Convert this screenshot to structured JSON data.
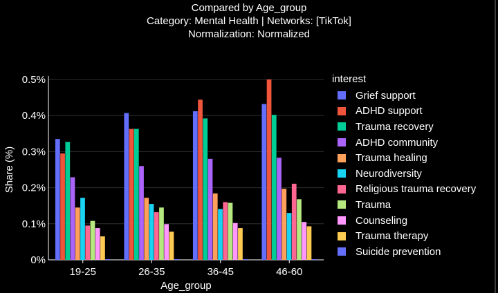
{
  "title": {
    "line1": "Compared by Age_group",
    "line2": "Category: Mental Health | Networks: [TikTok]",
    "line3": "Normalization: Normalized"
  },
  "chart_data": {
    "type": "bar",
    "xlabel": "Age_group",
    "ylabel": "Share (%)",
    "ylim": [
      0,
      0.5
    ],
    "yticks": [
      "0%",
      "0.1%",
      "0.2%",
      "0.3%",
      "0.4%",
      "0.5%"
    ],
    "yticks_values": [
      0,
      0.1,
      0.2,
      0.3,
      0.4,
      0.5
    ],
    "categories": [
      "19-25",
      "26-35",
      "36-45",
      "46-60"
    ],
    "legend_title": "interest",
    "legend_position": "right",
    "series": [
      {
        "name": "Grief support",
        "color": "#636efa",
        "values": [
          0.335,
          0.407,
          0.412,
          0.432
        ]
      },
      {
        "name": "ADHD support",
        "color": "#ef553b",
        "values": [
          0.295,
          0.363,
          0.444,
          0.5
        ]
      },
      {
        "name": "Trauma recovery",
        "color": "#00cc96",
        "values": [
          0.327,
          0.363,
          0.392,
          0.402
        ]
      },
      {
        "name": "ADHD community",
        "color": "#ab63fa",
        "values": [
          0.229,
          0.26,
          0.28,
          0.283
        ]
      },
      {
        "name": "Trauma healing",
        "color": "#ffa15a",
        "values": [
          0.145,
          0.172,
          0.184,
          0.197
        ]
      },
      {
        "name": "Neurodiversity",
        "color": "#19d3f3",
        "values": [
          0.172,
          0.155,
          0.141,
          0.13
        ]
      },
      {
        "name": "Religious trauma recovery",
        "color": "#ff6692",
        "values": [
          0.095,
          0.132,
          0.16,
          0.211
        ]
      },
      {
        "name": "Trauma",
        "color": "#b6e880",
        "values": [
          0.108,
          0.145,
          0.158,
          0.168
        ]
      },
      {
        "name": "Counseling",
        "color": "#ff97ff",
        "values": [
          0.088,
          0.099,
          0.102,
          0.105
        ]
      },
      {
        "name": "Trauma therapy",
        "color": "#fecb52",
        "values": [
          0.065,
          0.078,
          0.088,
          0.093
        ]
      },
      {
        "name": "Suicide prevention",
        "color": "#636efa",
        "values": [
          0.002,
          0.002,
          0.002,
          0.002
        ]
      }
    ]
  }
}
